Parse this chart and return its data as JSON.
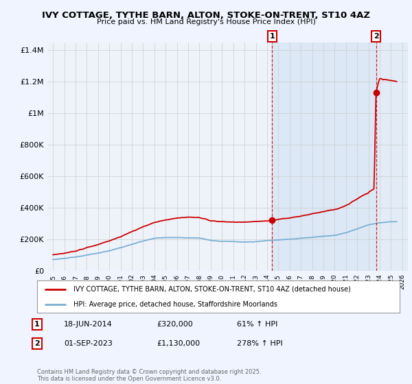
{
  "title": "IVY COTTAGE, TYTHE BARN, ALTON, STOKE-ON-TRENT, ST10 4AZ",
  "subtitle": "Price paid vs. HM Land Registry's House Price Index (HPI)",
  "ylim": [
    0,
    1450000
  ],
  "yticks": [
    0,
    200000,
    400000,
    600000,
    800000,
    1000000,
    1200000,
    1400000
  ],
  "ytick_labels": [
    "£0",
    "£200K",
    "£400K",
    "£600K",
    "£800K",
    "£1M",
    "£1.2M",
    "£1.4M"
  ],
  "xlim_start": 1994.5,
  "xlim_end": 2026.5,
  "xtick_years": [
    1995,
    1996,
    1997,
    1998,
    1999,
    2000,
    2001,
    2002,
    2003,
    2004,
    2005,
    2006,
    2007,
    2008,
    2009,
    2010,
    2011,
    2012,
    2013,
    2014,
    2015,
    2016,
    2017,
    2018,
    2019,
    2020,
    2021,
    2022,
    2023,
    2024,
    2025,
    2026
  ],
  "red_color": "#cc0000",
  "blue_color": "#7aafd4",
  "shade_color": "#dce8f5",
  "background_color": "#f0f4ff",
  "plot_bg_color": "#eef3fa",
  "grid_color": "#cccccc",
  "transaction1_x": 2014.46,
  "transaction1_y": 320000,
  "transaction2_x": 2023.67,
  "transaction2_y": 1130000,
  "legend_label_red": "IVY COTTAGE, TYTHE BARN, ALTON, STOKE-ON-TRENT, ST10 4AZ (detached house)",
  "legend_label_blue": "HPI: Average price, detached house, Staffordshire Moorlands",
  "footer_line1": "Contains HM Land Registry data © Crown copyright and database right 2025.",
  "footer_line2": "This data is licensed under the Open Government Licence v3.0.",
  "table_row1": [
    "1",
    "18-JUN-2014",
    "£320,000",
    "61% ↑ HPI"
  ],
  "table_row2": [
    "2",
    "01-SEP-2023",
    "£1,130,000",
    "278% ↑ HPI"
  ]
}
